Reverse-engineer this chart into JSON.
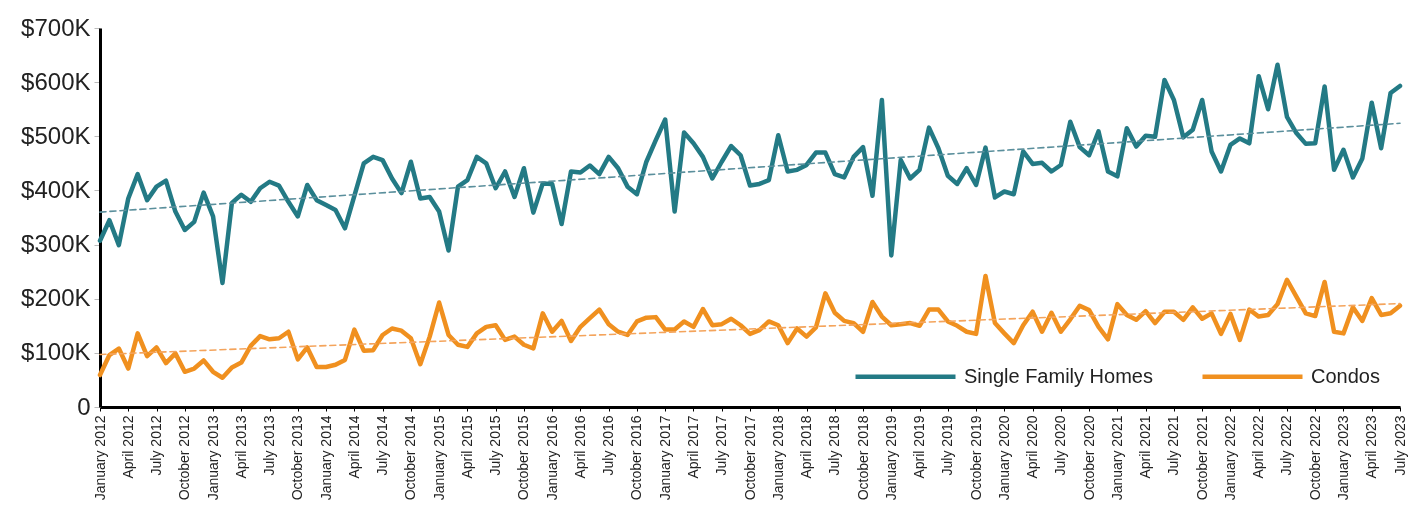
{
  "chart_data": {
    "type": "line",
    "categories": [
      "January 2012",
      null,
      null,
      "April 2012",
      null,
      null,
      "July 2012",
      null,
      null,
      "October 2012",
      null,
      null,
      "January 2013",
      null,
      null,
      "April 2013",
      null,
      null,
      "July 2013",
      null,
      null,
      "October 2013",
      null,
      null,
      "January 2014",
      null,
      null,
      "April 2014",
      null,
      null,
      "July 2014",
      null,
      null,
      "October 2014",
      null,
      null,
      "January 2015",
      null,
      null,
      "April 2015",
      null,
      null,
      "July 2015",
      null,
      null,
      "October 2015",
      null,
      null,
      "January 2016",
      null,
      null,
      "April 2016",
      null,
      null,
      "July 2016",
      null,
      null,
      "October 2016",
      null,
      null,
      "January 2017",
      null,
      null,
      "April 2017",
      null,
      null,
      "July 2017",
      null,
      null,
      "October 2017",
      null,
      null,
      "January 2018",
      null,
      null,
      "April 2018",
      null,
      null,
      "July 2018",
      null,
      null,
      "October 2018",
      null,
      null,
      "January 2019",
      null,
      null,
      "April 2019",
      null,
      null,
      "July 2019",
      null,
      null,
      "October 2019",
      null,
      null,
      "January 2020",
      null,
      null,
      "April 2020",
      null,
      null,
      "July 2020",
      null,
      null,
      "October 2020",
      null,
      null,
      "January 2021",
      null,
      null,
      "April 2021",
      null,
      null,
      "July 2021",
      null,
      null,
      "October 2021",
      null,
      null,
      "January 2022",
      null,
      null,
      "April 2022",
      null,
      null,
      "July 2022",
      null,
      null,
      "October 2022",
      null,
      null,
      "January 2023",
      null,
      null,
      "April 2023",
      null,
      null,
      "July 2023"
    ],
    "series": [
      {
        "name": "Single Family Homes",
        "color": "#237a85",
        "values": [
          307,
          345,
          299,
          385,
          430,
          382,
          407,
          418,
          361,
          327,
          342,
          396,
          352,
          229,
          377,
          392,
          379,
          404,
          416,
          409,
          379,
          352,
          410,
          382,
          373,
          364,
          330,
          390,
          450,
          462,
          456,
          422,
          395,
          453,
          385,
          388,
          361,
          289,
          407,
          419,
          462,
          450,
          404,
          435,
          388,
          441,
          359,
          413,
          412,
          338,
          435,
          433,
          446,
          430,
          462,
          441,
          407,
          393,
          453,
          493,
          531,
          361,
          507,
          487,
          462,
          422,
          453,
          482,
          465,
          409,
          412,
          419,
          502,
          435,
          438,
          447,
          470,
          470,
          430,
          424,
          462,
          480,
          390,
          567,
          280,
          456,
          422,
          438,
          516,
          478,
          427,
          412,
          441,
          410,
          479,
          387,
          398,
          393,
          472,
          449,
          451,
          435,
          447,
          527,
          480,
          465,
          509,
          435,
          426,
          515,
          481,
          501,
          499,
          604,
          567,
          498,
          512,
          567,
          472,
          435,
          484,
          496,
          487,
          611,
          550,
          632,
          536,
          506,
          486,
          487,
          592,
          438,
          475,
          424,
          459,
          562,
          478,
          580,
          593
        ]
      },
      {
        "name": "Condos",
        "color": "#f0901f",
        "values": [
          59,
          96,
          108,
          71,
          136,
          94,
          110,
          81,
          99,
          65,
          71,
          86,
          65,
          54,
          73,
          82,
          113,
          131,
          125,
          127,
          139,
          88,
          110,
          74,
          74,
          78,
          87,
          143,
          104,
          105,
          133,
          145,
          141,
          127,
          79,
          130,
          193,
          133,
          115,
          111,
          136,
          148,
          151,
          124,
          130,
          115,
          108,
          173,
          139,
          159,
          122,
          148,
          164,
          180,
          153,
          139,
          133,
          158,
          165,
          166,
          143,
          143,
          158,
          148,
          181,
          151,
          153,
          163,
          151,
          135,
          142,
          158,
          151,
          118,
          145,
          130,
          147,
          210,
          174,
          159,
          155,
          139,
          194,
          167,
          151,
          153,
          155,
          150,
          180,
          180,
          158,
          150,
          139,
          135,
          242,
          155,
          136,
          118,
          151,
          176,
          139,
          174,
          139,
          162,
          187,
          179,
          148,
          125,
          190,
          170,
          161,
          177,
          155,
          176,
          176,
          161,
          184,
          163,
          173,
          135,
          172,
          124,
          180,
          167,
          170,
          190,
          235,
          204,
          173,
          168,
          231,
          139,
          136,
          184,
          159,
          201,
          170,
          173,
          187
        ]
      },
      {
        "type": "line",
        "color": "#5a8f9c",
        "line_style": "dashed",
        "x": [
          "January 2012",
          "July 2023"
        ],
        "values": [
          360,
          524
        ]
      },
      {
        "type": "line",
        "color": "#f4a45c",
        "line_style": "dashed",
        "x": [
          "January 2012",
          "July 2023"
        ],
        "values": [
          97,
          191
        ]
      }
    ],
    "ylim": [
      0,
      700
    ],
    "yticks": [
      0,
      {
        "value": 100,
        "label": "$100K"
      },
      {
        "value": 200,
        "label": "$200K"
      },
      {
        "value": 300,
        "label": "$300K"
      },
      {
        "value": 400,
        "label": "$400K"
      },
      {
        "value": 500,
        "label": "$500K"
      },
      {
        "value": 600,
        "label": "$600K"
      },
      {
        "value": 700,
        "label": "$700K"
      }
    ],
    "legend": "bottom right"
  }
}
